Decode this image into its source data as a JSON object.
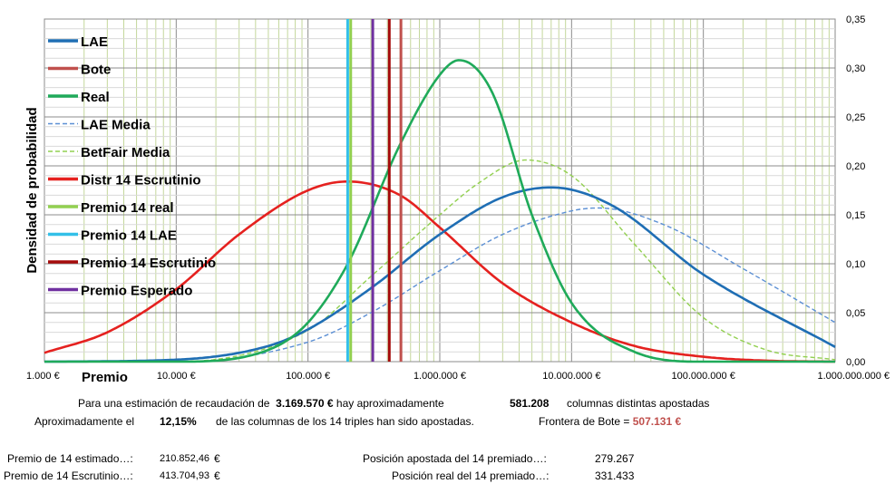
{
  "chart_data": {
    "type": "line",
    "x_scale": "log",
    "xlim": [
      1000,
      1000000000
    ],
    "ylim": [
      0,
      0.35
    ],
    "ylabel": "Densidad de probabilidad",
    "xlabel": "Premio",
    "grid": true,
    "legend_position": "top-left",
    "x_ticks": [
      "1.000 €",
      "10.000 €",
      "100.000 €",
      "1.000.000 €",
      "10.000.000 €",
      "100.000.000 €",
      "1.000.000.000 €"
    ],
    "y_ticks": [
      "0,00",
      "0,05",
      "0,10",
      "0,15",
      "0,20",
      "0,25",
      "0,30",
      "0,35"
    ],
    "series": [
      {
        "name": "LAE",
        "kind": "curve",
        "color": "#1f6eb4",
        "dash": false,
        "x": [
          1000,
          10000,
          50000,
          100000,
          300000,
          1000000,
          3000000,
          7000000,
          20000000,
          100000000,
          1000000000
        ],
        "y": [
          0.0,
          0.002,
          0.016,
          0.033,
          0.075,
          0.13,
          0.168,
          0.178,
          0.16,
          0.089,
          0.015
        ]
      },
      {
        "name": "Bote",
        "kind": "vline",
        "color": "#c0504d",
        "dash": false,
        "x_value": 507131
      },
      {
        "name": "Real",
        "kind": "curve",
        "color": "#1faa5a",
        "dash": false,
        "x": [
          1000,
          10000,
          50000,
          100000,
          200000,
          500000,
          1000000,
          1400000,
          2500000,
          5000000,
          10000000,
          30000000,
          100000000,
          1000000000
        ],
        "y": [
          0.0,
          0.0,
          0.012,
          0.04,
          0.1,
          0.222,
          0.293,
          0.308,
          0.275,
          0.15,
          0.06,
          0.01,
          0.0,
          0.0
        ]
      },
      {
        "name": "LAE Media",
        "kind": "curve",
        "color": "#5b8fd4",
        "dash": true,
        "x": [
          1000,
          10000,
          100000,
          300000,
          1000000,
          3000000,
          10000000,
          16000000,
          50000000,
          200000000,
          1000000000
        ],
        "y": [
          0.0,
          0.0,
          0.02,
          0.05,
          0.093,
          0.13,
          0.154,
          0.157,
          0.14,
          0.095,
          0.04
        ]
      },
      {
        "name": "BetFair Media",
        "kind": "curve",
        "color": "#92d050",
        "dash": true,
        "x": [
          1000,
          10000,
          100000,
          300000,
          1000000,
          2000000,
          4500000,
          10000000,
          30000000,
          100000000,
          300000000,
          1000000000
        ],
        "y": [
          0.0,
          0.0,
          0.032,
          0.087,
          0.15,
          0.183,
          0.206,
          0.19,
          0.12,
          0.045,
          0.012,
          0.002
        ]
      },
      {
        "name": "Distr 14 Escrutinio",
        "kind": "curve",
        "color": "#e5211f",
        "dash": false,
        "x": [
          1000,
          3000,
          10000,
          30000,
          100000,
          200000,
          500000,
          1000000,
          3000000,
          10000000,
          30000000,
          100000000,
          300000000,
          1000000000
        ],
        "y": [
          0.009,
          0.03,
          0.074,
          0.13,
          0.175,
          0.184,
          0.17,
          0.137,
          0.08,
          0.04,
          0.016,
          0.005,
          0.001,
          0.0
        ]
      },
      {
        "name": "Premio 14 real",
        "kind": "vline",
        "color": "#92d050",
        "dash": false,
        "x_value": 210852.46
      },
      {
        "name": "Premio 14 LAE",
        "kind": "vline",
        "color": "#33c0e8",
        "dash": false,
        "x_value": 200000
      },
      {
        "name": "Premio 14 Escrutinio",
        "kind": "vline",
        "color": "#a50b0b",
        "dash": false,
        "x_value": 413704.93
      },
      {
        "name": "Premio Esperado",
        "kind": "vline",
        "color": "#7030a0",
        "dash": false,
        "x_value": 310000
      }
    ]
  },
  "summary": {
    "line1_prefix": "Para  una estimación de recaudación de",
    "recaudacion": "3.169.570 €",
    "line1_mid": "hay aproximadamente",
    "columnas": "581.208",
    "line1_suffix": "columnas distintas apostadas",
    "line2_prefix": "Aproximadamente el",
    "porcentaje": "12,15%",
    "line2_mid": "de las columnas de los 14 triples han sido apostadas.",
    "frontera_label": "Frontera de Bote =",
    "frontera_value": "507.131 €"
  },
  "details": {
    "premio_estimado_label": "Premio de 14 estimado…:",
    "premio_estimado_value": "210.852,46",
    "premio_escrutinio_label": "Premio de 14 Escrutinio…:",
    "premio_escrutinio_value": "413.704,93",
    "currency": "€",
    "posicion_apostada_label": "Posición apostada del 14 premiado…:",
    "posicion_apostada_value": "279.267",
    "posicion_real_label": "Posición real del 14 premiado…:",
    "posicion_real_value": "331.433"
  }
}
